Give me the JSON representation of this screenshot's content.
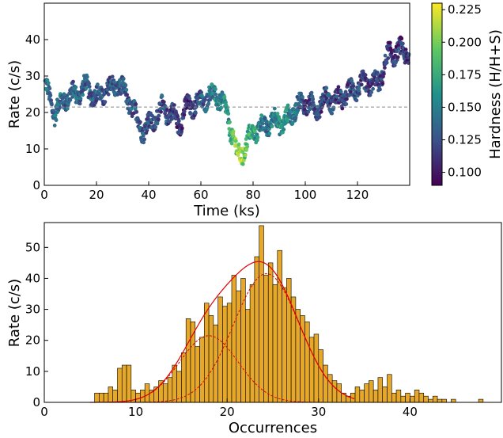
{
  "chart_data": [
    {
      "type": "scatter",
      "xlabel": "Time (ks)",
      "ylabel": "Rate (c/s)",
      "xlim": [
        0,
        140
      ],
      "ylim": [
        0,
        50
      ],
      "xticks": [
        0,
        20,
        40,
        60,
        80,
        100,
        120
      ],
      "yticks": [
        0,
        10,
        20,
        30,
        40
      ],
      "mean_line": 21.5,
      "grid": false,
      "colorbar": {
        "label": "Hardness (H/H+S)",
        "range": [
          0.09,
          0.23
        ],
        "ticks": [
          "0.100",
          "0.125",
          "0.150",
          "0.175",
          "0.200",
          "0.225"
        ],
        "colormap": "viridis"
      },
      "trend": [
        [
          0,
          28
        ],
        [
          4,
          20
        ],
        [
          8,
          24
        ],
        [
          12,
          25
        ],
        [
          16,
          27
        ],
        [
          20,
          24
        ],
        [
          24,
          26
        ],
        [
          28,
          28
        ],
        [
          32,
          24
        ],
        [
          35,
          19
        ],
        [
          38,
          15
        ],
        [
          42,
          18
        ],
        [
          45,
          21
        ],
        [
          48,
          20
        ],
        [
          52,
          17
        ],
        [
          55,
          22
        ],
        [
          58,
          22
        ],
        [
          62,
          24
        ],
        [
          66,
          25
        ],
        [
          70,
          20
        ],
        [
          74,
          8
        ],
        [
          76,
          9
        ],
        [
          80,
          15
        ],
        [
          84,
          16
        ],
        [
          88,
          18
        ],
        [
          92,
          17
        ],
        [
          96,
          21
        ],
        [
          100,
          23
        ],
        [
          104,
          21
        ],
        [
          108,
          24
        ],
        [
          112,
          23
        ],
        [
          116,
          25
        ],
        [
          120,
          27
        ],
        [
          124,
          28
        ],
        [
          128,
          28
        ],
        [
          132,
          36
        ],
        [
          136,
          37
        ],
        [
          140,
          36
        ]
      ],
      "hardness_trend": [
        [
          0,
          0.14
        ],
        [
          20,
          0.13
        ],
        [
          40,
          0.13
        ],
        [
          55,
          0.11
        ],
        [
          65,
          0.15
        ],
        [
          70,
          0.16
        ],
        [
          75,
          0.22
        ],
        [
          78,
          0.18
        ],
        [
          85,
          0.14
        ],
        [
          92,
          0.16
        ],
        [
          100,
          0.12
        ],
        [
          120,
          0.12
        ],
        [
          140,
          0.11
        ]
      ]
    },
    {
      "type": "bar",
      "xlabel": "Occurrences",
      "ylabel": "Rate (c/s)",
      "xlim": [
        0,
        50
      ],
      "ylim": [
        0,
        58
      ],
      "xticks": [
        0,
        10,
        20,
        30,
        40
      ],
      "yticks": [
        0,
        10,
        20,
        30,
        40,
        50
      ],
      "bin_width": 0.5,
      "bar_color": "#E5A82A",
      "fit_color": "#E00000",
      "components": [
        {
          "amplitude": 21.5,
          "center": 18.0,
          "sigma": 3.2
        },
        {
          "amplitude": 41.5,
          "center": 24.3,
          "sigma": 3.6
        }
      ],
      "bins": [
        [
          5.5,
          3
        ],
        [
          6.0,
          3
        ],
        [
          6.5,
          3
        ],
        [
          7.0,
          5
        ],
        [
          7.5,
          4
        ],
        [
          8.0,
          11
        ],
        [
          8.5,
          12
        ],
        [
          9.0,
          12
        ],
        [
          9.5,
          4
        ],
        [
          10.0,
          3
        ],
        [
          10.5,
          4
        ],
        [
          11.0,
          6
        ],
        [
          11.5,
          4
        ],
        [
          12.0,
          5
        ],
        [
          12.5,
          7
        ],
        [
          13.0,
          6
        ],
        [
          13.5,
          8
        ],
        [
          14.0,
          12
        ],
        [
          14.5,
          10
        ],
        [
          15.0,
          16
        ],
        [
          15.5,
          27
        ],
        [
          16.0,
          26
        ],
        [
          16.5,
          18
        ],
        [
          17.0,
          21
        ],
        [
          17.5,
          32
        ],
        [
          18.0,
          28
        ],
        [
          18.5,
          25
        ],
        [
          19.0,
          34
        ],
        [
          19.5,
          31
        ],
        [
          20.0,
          32
        ],
        [
          20.5,
          41
        ],
        [
          21.0,
          36
        ],
        [
          21.5,
          40
        ],
        [
          22.0,
          30
        ],
        [
          22.5,
          38
        ],
        [
          23.0,
          47
        ],
        [
          23.5,
          57
        ],
        [
          24.0,
          41
        ],
        [
          24.5,
          45
        ],
        [
          25.0,
          38
        ],
        [
          25.5,
          49
        ],
        [
          26.0,
          37
        ],
        [
          26.5,
          40
        ],
        [
          27.0,
          34
        ],
        [
          27.5,
          30
        ],
        [
          28.0,
          28
        ],
        [
          28.5,
          26
        ],
        [
          29.0,
          21
        ],
        [
          29.5,
          22
        ],
        [
          30.0,
          17
        ],
        [
          30.5,
          12
        ],
        [
          31.0,
          9
        ],
        [
          31.5,
          7
        ],
        [
          32.0,
          6
        ],
        [
          32.5,
          3
        ],
        [
          33.0,
          2
        ],
        [
          33.5,
          3
        ],
        [
          34.0,
          5
        ],
        [
          34.5,
          4
        ],
        [
          35.0,
          6
        ],
        [
          35.5,
          7
        ],
        [
          36.0,
          4
        ],
        [
          36.5,
          8
        ],
        [
          37.0,
          5
        ],
        [
          37.5,
          9
        ],
        [
          38.0,
          3
        ],
        [
          38.5,
          4
        ],
        [
          39.0,
          2
        ],
        [
          39.5,
          3
        ],
        [
          40.0,
          2
        ],
        [
          40.5,
          4
        ],
        [
          41.0,
          3
        ],
        [
          41.5,
          2
        ],
        [
          42.0,
          1
        ],
        [
          42.5,
          2
        ],
        [
          43.0,
          1
        ],
        [
          43.5,
          1
        ],
        [
          44.5,
          1
        ],
        [
          47.5,
          1
        ]
      ]
    }
  ]
}
